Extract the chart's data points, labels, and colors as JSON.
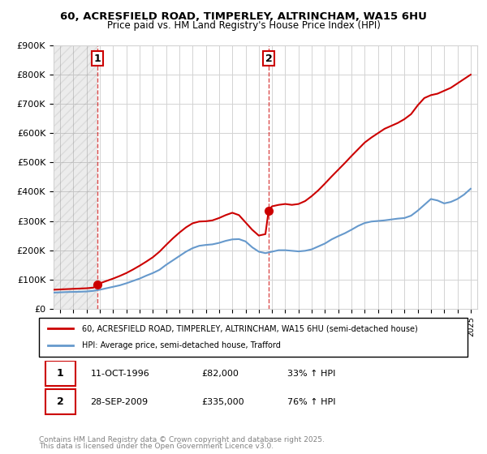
{
  "title_line1": "60, ACRESFIELD ROAD, TIMPERLEY, ALTRINCHAM, WA15 6HU",
  "title_line2": "Price paid vs. HM Land Registry's House Price Index (HPI)",
  "xlabel": "",
  "ylabel": "",
  "ylim": [
    0,
    900000
  ],
  "yticks": [
    0,
    100000,
    200000,
    300000,
    400000,
    500000,
    600000,
    700000,
    800000,
    900000
  ],
  "ytick_labels": [
    "£0",
    "£100K",
    "£200K",
    "£300K",
    "£400K",
    "£500K",
    "£600K",
    "£700K",
    "£800K",
    "£900K"
  ],
  "xlim_start": 1993.5,
  "xlim_end": 2025.5,
  "sale1_year": 1996.79,
  "sale1_price": 82000,
  "sale2_year": 2009.74,
  "sale2_price": 335000,
  "red_color": "#cc0000",
  "blue_color": "#6699cc",
  "hatch_color": "#cccccc",
  "legend_label1": "60, ACRESFIELD ROAD, TIMPERLEY, ALTRINCHAM, WA15 6HU (semi-detached house)",
  "legend_label2": "HPI: Average price, semi-detached house, Trafford",
  "footer_line1": "Contains HM Land Registry data © Crown copyright and database right 2025.",
  "footer_line2": "This data is licensed under the Open Government Licence v3.0.",
  "table_row1": [
    "1",
    "11-OCT-1996",
    "£82,000",
    "33% ↑ HPI"
  ],
  "table_row2": [
    "2",
    "28-SEP-2009",
    "£335,000",
    "76% ↑ HPI"
  ],
  "hpi_years": [
    1993.5,
    1994,
    1994.5,
    1995,
    1995.5,
    1996,
    1996.5,
    1997,
    1997.5,
    1998,
    1998.5,
    1999,
    1999.5,
    2000,
    2000.5,
    2001,
    2001.5,
    2002,
    2002.5,
    2003,
    2003.5,
    2004,
    2004.5,
    2005,
    2005.5,
    2006,
    2006.5,
    2007,
    2007.5,
    2008,
    2008.5,
    2009,
    2009.5,
    2010,
    2010.5,
    2011,
    2011.5,
    2012,
    2012.5,
    2013,
    2013.5,
    2014,
    2014.5,
    2015,
    2015.5,
    2016,
    2016.5,
    2017,
    2017.5,
    2018,
    2018.5,
    2019,
    2019.5,
    2020,
    2020.5,
    2021,
    2021.5,
    2022,
    2022.5,
    2023,
    2023.5,
    2024,
    2024.5,
    2025
  ],
  "hpi_values": [
    55000,
    56000,
    57000,
    57500,
    58000,
    59000,
    61000,
    65000,
    70000,
    75000,
    80000,
    87000,
    95000,
    103000,
    113000,
    122000,
    133000,
    150000,
    165000,
    180000,
    195000,
    207000,
    215000,
    218000,
    220000,
    225000,
    232000,
    237000,
    238000,
    230000,
    210000,
    195000,
    190000,
    195000,
    200000,
    200000,
    198000,
    196000,
    198000,
    203000,
    213000,
    223000,
    237000,
    248000,
    258000,
    270000,
    283000,
    293000,
    298000,
    300000,
    302000,
    305000,
    308000,
    310000,
    318000,
    335000,
    355000,
    375000,
    370000,
    360000,
    365000,
    375000,
    390000,
    410000
  ],
  "red_years": [
    1993.5,
    1994,
    1994.5,
    1995,
    1995.5,
    1996,
    1996.5,
    1996.79,
    1997,
    1997.5,
    1998,
    1998.5,
    1999,
    1999.5,
    2000,
    2000.5,
    2001,
    2001.5,
    2002,
    2002.5,
    2003,
    2003.5,
    2004,
    2004.5,
    2005,
    2005.5,
    2006,
    2006.5,
    2007,
    2007.5,
    2008,
    2008.5,
    2009,
    2009.5,
    2009.74,
    2010,
    2010.5,
    2011,
    2011.5,
    2012,
    2012.5,
    2013,
    2013.5,
    2014,
    2014.5,
    2015,
    2015.5,
    2016,
    2016.5,
    2017,
    2017.5,
    2018,
    2018.5,
    2019,
    2019.5,
    2020,
    2020.5,
    2021,
    2021.5,
    2022,
    2022.5,
    2023,
    2023.5,
    2024,
    2024.5,
    2025
  ],
  "red_values": [
    65000,
    66000,
    67000,
    68000,
    69000,
    70000,
    72000,
    82000,
    87000,
    95000,
    103000,
    112000,
    122000,
    134000,
    147000,
    161000,
    176000,
    195000,
    218000,
    240000,
    260000,
    278000,
    292000,
    298000,
    299000,
    302000,
    310000,
    320000,
    328000,
    320000,
    295000,
    270000,
    250000,
    255000,
    335000,
    350000,
    355000,
    358000,
    355000,
    358000,
    368000,
    385000,
    405000,
    428000,
    452000,
    475000,
    498000,
    522000,
    545000,
    568000,
    585000,
    600000,
    615000,
    625000,
    635000,
    648000,
    665000,
    695000,
    720000,
    730000,
    735000,
    745000,
    755000,
    770000,
    785000,
    800000
  ]
}
